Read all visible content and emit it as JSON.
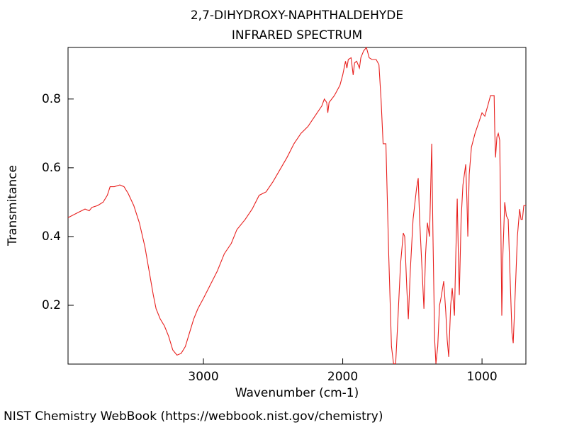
{
  "chart_data": {
    "type": "line",
    "title": "2,7-DIHYDROXY-NAPHTHALDEHYDE",
    "subtitle": "INFRARED SPECTRUM",
    "xlabel": "Wavenumber (cm-1)",
    "ylabel": "Transmitance",
    "xlim": [
      3972,
      685
    ],
    "ylim": [
      0.029,
      0.95
    ],
    "xticks": [
      3000,
      2000,
      1000
    ],
    "yticks": [
      0.2,
      0.4,
      0.6,
      0.8
    ],
    "color": "#e8201e",
    "x": [
      3972,
      3900,
      3850,
      3820,
      3800,
      3760,
      3720,
      3690,
      3670,
      3640,
      3600,
      3570,
      3540,
      3500,
      3460,
      3420,
      3390,
      3360,
      3340,
      3310,
      3280,
      3250,
      3220,
      3190,
      3160,
      3130,
      3100,
      3070,
      3040,
      3000,
      2950,
      2900,
      2850,
      2800,
      2760,
      2700,
      2650,
      2600,
      2550,
      2500,
      2450,
      2400,
      2350,
      2300,
      2250,
      2200,
      2150,
      2132,
      2115,
      2107,
      2098,
      2060,
      2020,
      2000,
      1980,
      1970,
      1960,
      1940,
      1925,
      1915,
      1900,
      1880,
      1870,
      1850,
      1830,
      1810,
      1790,
      1760,
      1740,
      1725,
      1710,
      1690,
      1670,
      1650,
      1635,
      1620,
      1605,
      1585,
      1565,
      1555,
      1540,
      1529,
      1515,
      1495,
      1470,
      1458,
      1448,
      1430,
      1417,
      1405,
      1392,
      1377,
      1368,
      1361,
      1352,
      1340,
      1331,
      1318,
      1305,
      1295,
      1275,
      1260,
      1250,
      1239,
      1225,
      1214,
      1198,
      1188,
      1178,
      1170,
      1163,
      1150,
      1137,
      1117,
      1108,
      1102,
      1092,
      1076,
      1050,
      1025,
      1000,
      980,
      959,
      939,
      913,
      908,
      903,
      893,
      883,
      873,
      864,
      858,
      850,
      837,
      825,
      812,
      800,
      785,
      776,
      765,
      746,
      730,
      720,
      710,
      700,
      685
    ],
    "values": [
      0.455,
      0.47,
      0.48,
      0.475,
      0.485,
      0.49,
      0.5,
      0.52,
      0.545,
      0.545,
      0.55,
      0.545,
      0.525,
      0.49,
      0.44,
      0.37,
      0.3,
      0.23,
      0.19,
      0.16,
      0.14,
      0.11,
      0.07,
      0.055,
      0.06,
      0.08,
      0.12,
      0.16,
      0.19,
      0.22,
      0.26,
      0.3,
      0.35,
      0.38,
      0.42,
      0.45,
      0.48,
      0.52,
      0.53,
      0.56,
      0.595,
      0.63,
      0.67,
      0.7,
      0.72,
      0.75,
      0.78,
      0.8,
      0.79,
      0.76,
      0.79,
      0.81,
      0.84,
      0.87,
      0.91,
      0.89,
      0.915,
      0.92,
      0.87,
      0.905,
      0.91,
      0.89,
      0.92,
      0.94,
      0.95,
      0.92,
      0.915,
      0.915,
      0.9,
      0.8,
      0.67,
      0.67,
      0.35,
      0.08,
      0.03,
      0.03,
      0.15,
      0.32,
      0.41,
      0.4,
      0.25,
      0.16,
      0.3,
      0.45,
      0.54,
      0.57,
      0.45,
      0.3,
      0.19,
      0.35,
      0.44,
      0.4,
      0.55,
      0.67,
      0.4,
      0.1,
      0.03,
      0.08,
      0.2,
      0.22,
      0.27,
      0.18,
      0.1,
      0.05,
      0.2,
      0.25,
      0.17,
      0.35,
      0.51,
      0.35,
      0.23,
      0.45,
      0.55,
      0.61,
      0.5,
      0.4,
      0.58,
      0.66,
      0.7,
      0.73,
      0.76,
      0.75,
      0.78,
      0.81,
      0.81,
      0.7,
      0.63,
      0.69,
      0.7,
      0.68,
      0.4,
      0.17,
      0.35,
      0.5,
      0.46,
      0.45,
      0.3,
      0.12,
      0.09,
      0.2,
      0.4,
      0.48,
      0.45,
      0.45,
      0.49,
      0.49
    ]
  },
  "footer": "NIST Chemistry WebBook (https://webbook.nist.gov/chemistry)"
}
